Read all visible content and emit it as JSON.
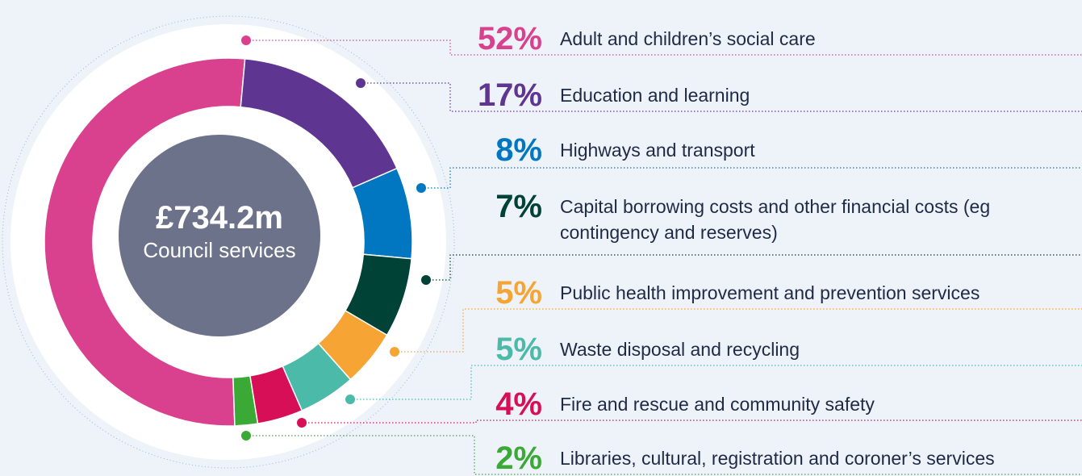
{
  "chart_data": {
    "type": "donut",
    "center_title": "£734.2m",
    "center_subtitle": "Council services",
    "categories": [
      "Adult and children’s social care",
      "Education and learning",
      "Highways and transport",
      "Capital borrowing costs and other financial costs (eg contingency and reserves)",
      "Public health improvement and prevention services",
      "Waste disposal and recycling",
      "Fire and rescue and community safety",
      "Libraries, cultural, registration and coroner’s services"
    ],
    "values": [
      52,
      17,
      8,
      7,
      5,
      5,
      4,
      2
    ],
    "value_labels": [
      "52%",
      "17%",
      "8%",
      "7%",
      "5%",
      "5%",
      "4%",
      "2%"
    ],
    "colors": [
      "#d9408e",
      "#5e3590",
      "#0077c0",
      "#004236",
      "#f6a534",
      "#4bbaa8",
      "#d70f57",
      "#3aa935"
    ]
  }
}
